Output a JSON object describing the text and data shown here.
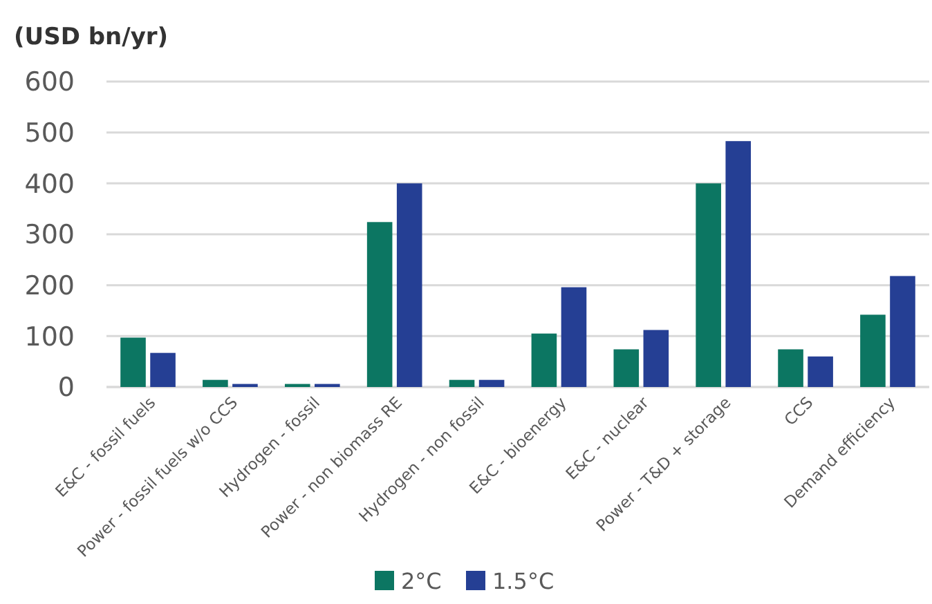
{
  "chart_data": {
    "type": "bar",
    "title": "(USD bn/yr)",
    "categories": [
      "E&C - fossil fuels",
      "Power - fossil fuels w/o CCS",
      "Hydrogen - fossil",
      "Power - non biomass RE",
      "Hydrogen - non fossil",
      "E&C - bioenergy",
      "E&C - nuclear",
      "Power - T&D + storage",
      "CCS",
      "Demand efficiency"
    ],
    "series": [
      {
        "name": "2°C",
        "color": "#0c7662",
        "values": [
          97,
          14,
          6,
          324,
          14,
          105,
          74,
          400,
          74,
          142
        ]
      },
      {
        "name": "1.5°C",
        "color": "#253f94",
        "values": [
          67,
          6,
          6,
          400,
          14,
          196,
          112,
          483,
          60,
          218
        ]
      }
    ],
    "ylim": [
      0,
      600
    ],
    "yticks": [
      0,
      100,
      200,
      300,
      400,
      500,
      600
    ],
    "grid": "y",
    "legend": "bottom"
  }
}
